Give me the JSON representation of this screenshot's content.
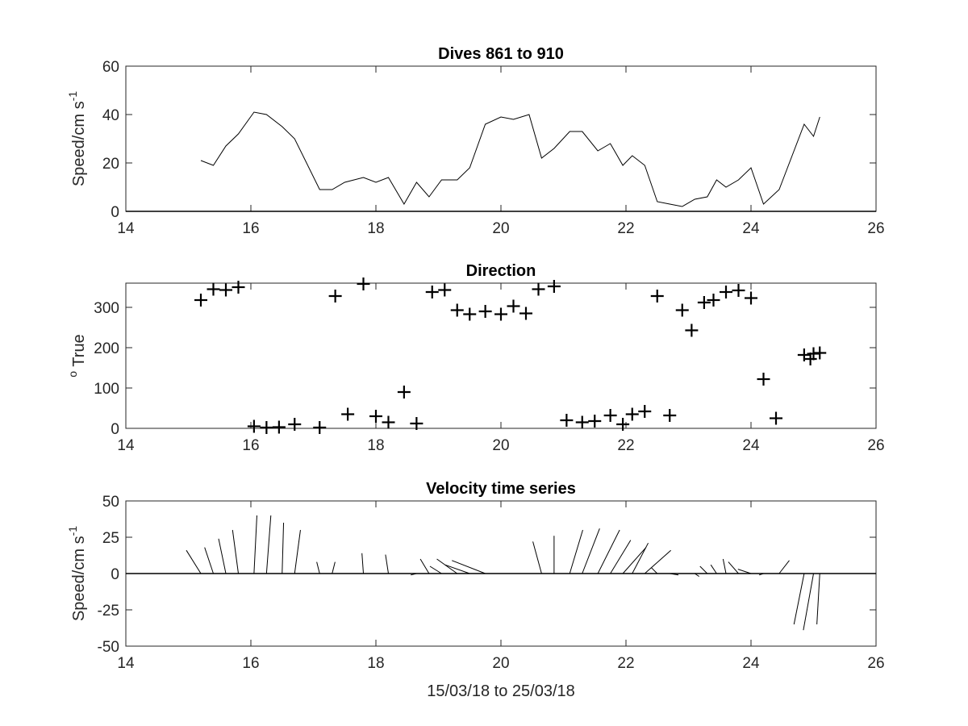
{
  "chart_data": [
    {
      "type": "line",
      "title": "Dives 861 to 910",
      "ylabel": {
        "main": "Speed/cm s",
        "sup": "-1"
      },
      "xlabel": "",
      "xlim": [
        14,
        26
      ],
      "ylim": [
        0,
        60
      ],
      "xticks": [
        14,
        16,
        18,
        20,
        22,
        24,
        26
      ],
      "yticks": [
        0,
        20,
        40,
        60
      ],
      "zero_line": true,
      "series": [
        {
          "x": [
            15.2,
            15.4,
            15.6,
            15.8,
            16.05,
            16.25,
            16.5,
            16.7,
            17.1,
            17.3,
            17.5,
            17.8,
            18.0,
            18.2,
            18.45,
            18.65,
            18.85,
            19.05,
            19.3,
            19.5,
            19.75,
            20.0,
            20.2,
            20.45,
            20.65,
            20.85,
            21.1,
            21.3,
            21.55,
            21.75,
            21.95,
            22.1,
            22.3,
            22.5,
            22.7,
            22.9,
            23.1,
            23.3,
            23.45,
            23.6,
            23.8,
            24.0,
            24.2,
            24.45,
            24.85,
            25.0,
            25.1
          ],
          "y": [
            21,
            19,
            27,
            32,
            41,
            40,
            35,
            30,
            9,
            9,
            12,
            14,
            12,
            14,
            3,
            12,
            6,
            13,
            13,
            18,
            36,
            39,
            38,
            40,
            22,
            26,
            33,
            33,
            25,
            28,
            19,
            23,
            19,
            4,
            3,
            2,
            5,
            6,
            13,
            10,
            13,
            18,
            3,
            9,
            36,
            31,
            39
          ]
        }
      ]
    },
    {
      "type": "scatter",
      "title": "Direction",
      "ylabel": {
        "main": " True",
        "sup": "o"
      },
      "xlabel": "",
      "xlim": [
        14,
        26
      ],
      "ylim": [
        0,
        360
      ],
      "xticks": [
        14,
        16,
        18,
        20,
        22,
        24,
        26
      ],
      "yticks": [
        0,
        100,
        200,
        300
      ],
      "marker": "+",
      "series": [
        {
          "x": [
            15.2,
            15.4,
            15.6,
            15.8,
            16.05,
            16.25,
            16.45,
            16.7,
            17.1,
            17.35,
            17.55,
            17.8,
            18.0,
            18.2,
            18.45,
            18.65,
            18.9,
            19.1,
            19.3,
            19.5,
            19.75,
            20.0,
            20.2,
            20.4,
            20.6,
            20.85,
            21.05,
            21.3,
            21.5,
            21.75,
            21.95,
            22.1,
            22.3,
            22.5,
            22.7,
            22.9,
            23.05,
            23.25,
            23.4,
            23.6,
            23.8,
            24.0,
            24.2,
            24.4,
            24.85,
            24.95,
            25.0,
            25.1
          ],
          "y": [
            318,
            345,
            343,
            350,
            5,
            2,
            3,
            10,
            2,
            328,
            35,
            358,
            30,
            15,
            90,
            12,
            338,
            343,
            293,
            283,
            290,
            283,
            303,
            285,
            345,
            352,
            20,
            15,
            18,
            32,
            10,
            35,
            42,
            328,
            32,
            293,
            243,
            312,
            318,
            338,
            342,
            323,
            122,
            25,
            182,
            172,
            185,
            187
          ]
        }
      ]
    },
    {
      "type": "stick",
      "title": "Velocity time series",
      "ylabel": {
        "main": "Speed/cm s",
        "sup": "-1"
      },
      "xlabel": "15/03/18 to 25/03/18",
      "xlim": [
        14,
        26
      ],
      "ylim": [
        -50,
        50
      ],
      "xticks": [
        14,
        16,
        18,
        20,
        22,
        24,
        26
      ],
      "yticks": [
        -50,
        -25,
        0,
        25,
        50
      ],
      "zero_line": true,
      "series": [
        {
          "x": [
            15.2,
            15.4,
            15.6,
            15.8,
            16.05,
            16.25,
            16.5,
            16.7,
            17.1,
            17.3,
            17.5,
            17.8,
            18.0,
            18.2,
            18.45,
            18.65,
            18.85,
            19.05,
            19.3,
            19.5,
            19.75,
            20.0,
            20.2,
            20.45,
            20.65,
            20.85,
            21.1,
            21.3,
            21.55,
            21.75,
            21.95,
            22.1,
            22.3,
            22.5,
            22.7,
            22.9,
            23.1,
            23.3,
            23.45,
            23.6,
            23.8,
            24.0,
            24.2,
            24.45,
            24.85,
            25.0,
            25.1
          ],
          "u": [
            -10,
            -6,
            -5,
            -4,
            2,
            3,
            1,
            4,
            -2,
            2,
            6,
            -1,
            6,
            -2,
            3,
            -4,
            -6,
            -8,
            -14,
            -17,
            -23,
            -31,
            -30,
            -38,
            -6,
            0,
            9,
            12,
            15,
            14,
            16,
            11,
            18,
            -4,
            6,
            -2,
            3,
            -5,
            -4,
            -2,
            -7,
            -9,
            -3,
            7,
            -7,
            -7,
            -2
          ],
          "v": [
            16,
            18,
            24,
            30,
            40,
            40,
            35,
            30,
            8,
            8,
            0,
            14,
            0,
            13,
            0,
            -1,
            10,
            5,
            10,
            6,
            9,
            0,
            0,
            0,
            22,
            26,
            30,
            31,
            30,
            23,
            18,
            21,
            16,
            4,
            -1,
            0,
            -2,
            5,
            6,
            10,
            8,
            3,
            -1,
            9,
            -35,
            -39,
            -35
          ]
        }
      ]
    }
  ]
}
